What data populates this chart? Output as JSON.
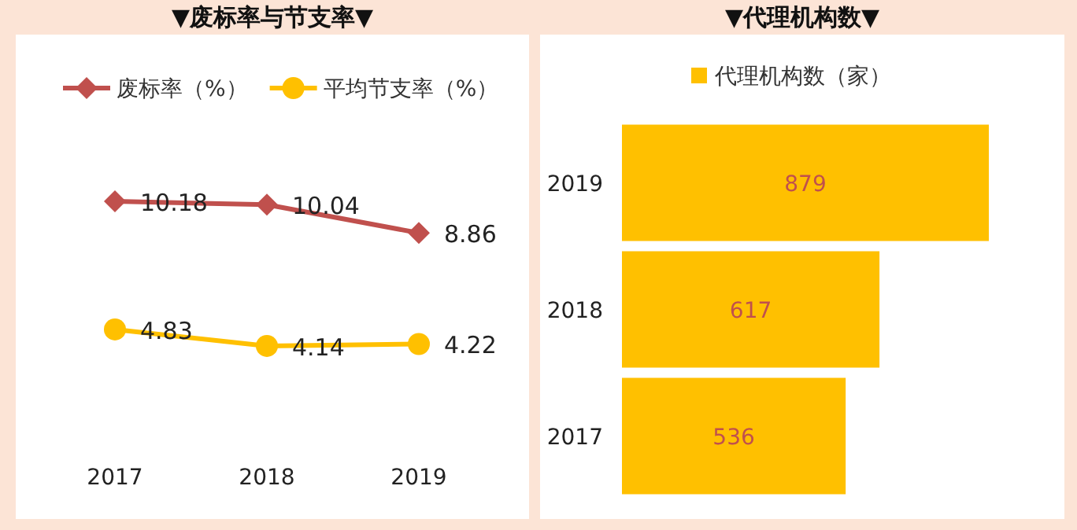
{
  "chart_data": [
    {
      "type": "line",
      "title": "▼废标率与节支率▼",
      "categories": [
        "2017",
        "2018",
        "2019"
      ],
      "data_labels": true,
      "legend": "top",
      "grid": false,
      "series": [
        {
          "name": "废标率（%）",
          "color": "#c0504d",
          "marker": "diamond",
          "values": [
            10.18,
            10.04,
            8.86
          ]
        },
        {
          "name": "平均节支率（%）",
          "color": "#ffc000",
          "marker": "circle",
          "values": [
            4.83,
            4.14,
            4.22
          ]
        }
      ]
    },
    {
      "type": "bar",
      "orientation": "horizontal",
      "title": "▼代理机构数▼",
      "categories": [
        "2019",
        "2018",
        "2017"
      ],
      "data_labels": true,
      "legend": "top",
      "series": [
        {
          "name": "代理机构数（家）",
          "color": "#ffc000",
          "values": [
            879,
            617,
            536
          ]
        }
      ]
    }
  ]
}
